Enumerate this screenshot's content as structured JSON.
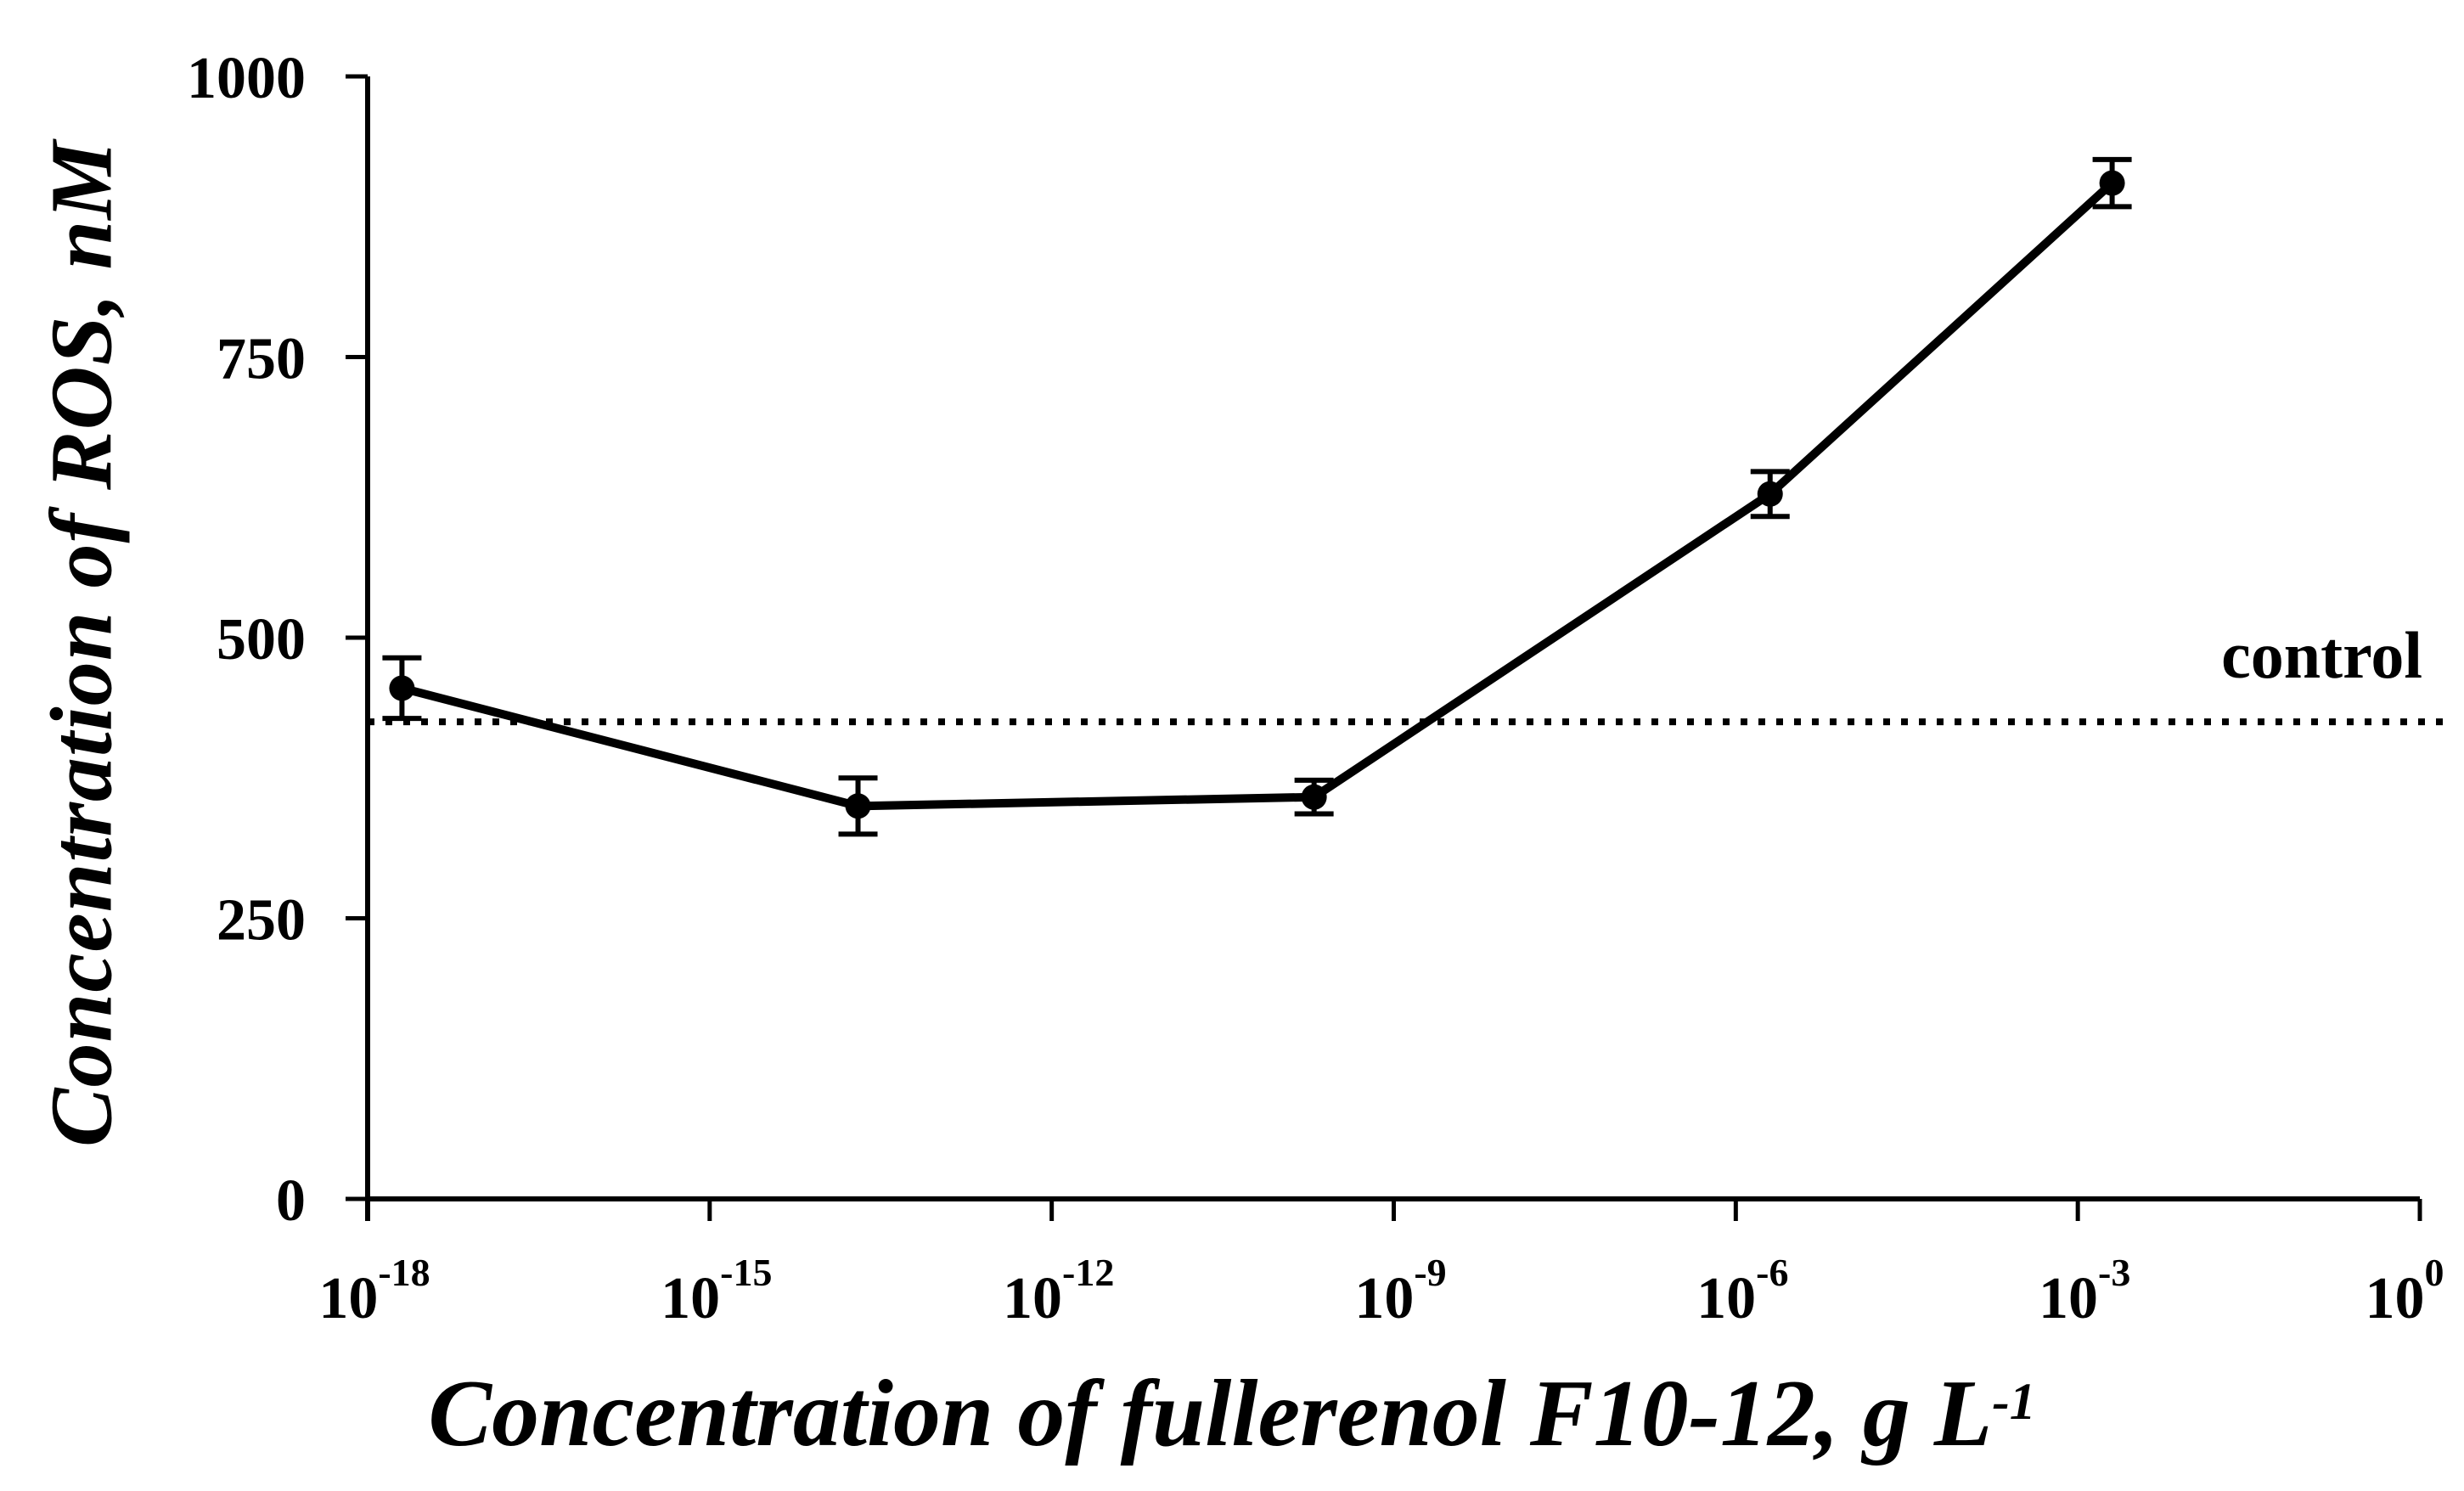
{
  "figure": {
    "background": "#ffffff",
    "ink": "#000000"
  },
  "chart_data": {
    "type": "line",
    "title": "",
    "ylabel": "Concentration of ROS, nM",
    "xlabel_main": "Concentration of fullerenol F10-12, g L",
    "xlabel_exp": "-1",
    "x_scale": "log",
    "xlim_exp": [
      -18,
      0
    ],
    "ylim": [
      0,
      1000
    ],
    "grid": false,
    "legend": "none",
    "y_ticks": [
      {
        "value": 0,
        "label": "0"
      },
      {
        "value": 250,
        "label": "250"
      },
      {
        "value": 500,
        "label": "500"
      },
      {
        "value": 750,
        "label": "750"
      },
      {
        "value": 1000,
        "label": "1000"
      }
    ],
    "x_ticks": [
      {
        "exp": -18,
        "base": "10",
        "exp_label": "-18"
      },
      {
        "exp": -15,
        "base": "10",
        "exp_label": "-15"
      },
      {
        "exp": -12,
        "base": "10",
        "exp_label": "-12"
      },
      {
        "exp": -9,
        "base": "10",
        "exp_label": "-9"
      },
      {
        "exp": -6,
        "base": "10",
        "exp_label": "-6"
      },
      {
        "exp": -3,
        "base": "10",
        "exp_label": "-3"
      },
      {
        "exp": 0,
        "base": "10",
        "exp_label": "0"
      }
    ],
    "series": [
      {
        "name": "ROS concentration",
        "marker": "circle",
        "color": "#000000",
        "points": [
          {
            "x": 2e-18,
            "y": 455,
            "err": 27
          },
          {
            "x": 2e-14,
            "y": 350,
            "err": 25
          },
          {
            "x": 2e-10,
            "y": 358,
            "err": 15
          },
          {
            "x": 2e-06,
            "y": 628,
            "err": 20
          },
          {
            "x": 0.002,
            "y": 905,
            "err": 21
          }
        ]
      }
    ],
    "control_line": {
      "value": 425,
      "label": "control",
      "style": "dotted"
    }
  }
}
